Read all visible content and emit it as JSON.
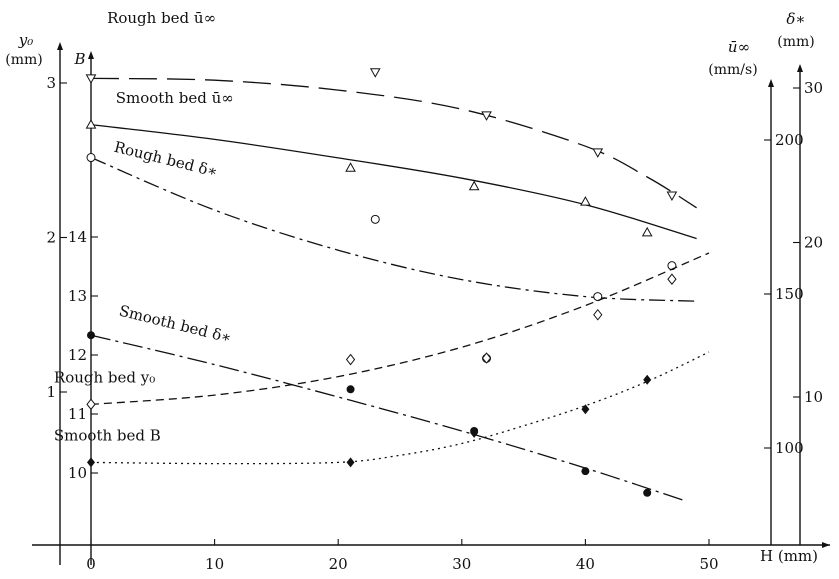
{
  "chart_data": {
    "type": "line",
    "x_axis": {
      "label": "H (mm)",
      "ticks": [
        0,
        10,
        20,
        30,
        40,
        50
      ],
      "range": [
        -5,
        60
      ]
    },
    "y_axes": [
      {
        "key": "y0",
        "label": "y₀",
        "unit": "(mm)",
        "ticks": [
          1,
          2,
          3
        ],
        "range": [
          0,
          3.2
        ],
        "position": "left-outer"
      },
      {
        "key": "B",
        "label": "B",
        "ticks": [
          10,
          11,
          12,
          13,
          14
        ],
        "range": [
          9.2,
          15.5
        ],
        "position": "left-inner"
      },
      {
        "key": "u",
        "label": "ū∞",
        "unit": "(mm/s)",
        "ticks": [
          100,
          150,
          200
        ],
        "range": [
          58,
          250
        ],
        "position": "right-inner"
      },
      {
        "key": "delta",
        "label": "δ∗",
        "unit": "(mm)",
        "ticks": [
          10,
          20,
          30
        ],
        "range": [
          0,
          32
        ],
        "position": "right-outer"
      }
    ],
    "series": [
      {
        "name": "Rough bed ū∞",
        "axis": "u",
        "marker": "triangle-down",
        "line": "long-dash",
        "x": [
          0,
          23,
          32,
          41,
          47
        ],
        "y": [
          220,
          222,
          208,
          196,
          182
        ],
        "curve_x": [
          0,
          10,
          20,
          30,
          40,
          45,
          49
        ],
        "curve_y": [
          220,
          219.4,
          216.2,
          210,
          198,
          188,
          178
        ]
      },
      {
        "name": "Smooth bed ū∞",
        "axis": "u",
        "marker": "triangle-up",
        "line": "solid",
        "x": [
          0,
          21,
          31,
          40,
          45
        ],
        "y": [
          205,
          191,
          185,
          180,
          170
        ],
        "curve_x": [
          0,
          10,
          20,
          30,
          40,
          49
        ],
        "curve_y": [
          205,
          200.2,
          194.2,
          187.6,
          179,
          168
        ]
      },
      {
        "name": "Rough bed δ∗",
        "axis": "delta",
        "marker": "circle-open",
        "line": "dash-dot",
        "x": [
          0,
          23,
          32,
          41,
          47
        ],
        "y": [
          25.5,
          21.5,
          12.5,
          16.5,
          18.5
        ],
        "curve_x": [
          0,
          10,
          20,
          30,
          40,
          49
        ],
        "curve_y": [
          25.5,
          22.1,
          19.5,
          17.6,
          16.5,
          16.2
        ]
      },
      {
        "name": "Smooth bed δ∗",
        "axis": "delta",
        "marker": "circle-filled",
        "line": "long-dash-dot",
        "x": [
          0,
          21,
          31,
          40,
          45
        ],
        "y": [
          14.0,
          10.5,
          7.8,
          5.2,
          3.8
        ],
        "curve_x": [
          0,
          10,
          20,
          30,
          40,
          48
        ],
        "curve_y": [
          14.0,
          12.1,
          10.0,
          7.8,
          5.4,
          3.3
        ]
      },
      {
        "name": "Rough bed y₀",
        "axis": "y0",
        "marker": "diamond-open",
        "line": "dashed",
        "x": [
          0,
          21,
          32,
          41,
          47
        ],
        "y": [
          0.92,
          1.21,
          1.22,
          1.5,
          1.73
        ],
        "curve_x": [
          0,
          10,
          20,
          30,
          40,
          50
        ],
        "curve_y": [
          0.92,
          0.98,
          1.1,
          1.29,
          1.56,
          1.9
        ]
      },
      {
        "name": "Smooth bed B",
        "axis": "B",
        "marker": "diamond-filled",
        "line": "dotted",
        "x": [
          0,
          21,
          31,
          40,
          45
        ],
        "y": [
          10.18,
          10.18,
          10.68,
          11.08,
          11.58
        ],
        "curve_x": [
          0,
          10,
          20,
          25,
          30,
          35,
          40,
          45,
          50
        ],
        "curve_y": [
          10.18,
          10.16,
          10.18,
          10.3,
          10.5,
          10.8,
          11.14,
          11.55,
          12.05
        ]
      }
    ],
    "annotations": [
      {
        "series": 0,
        "text": "Rough bed ū∞",
        "x": 1.3,
        "y": 238,
        "axis": "u"
      },
      {
        "series": 1,
        "text": "Smooth bed ū∞",
        "x": 2.0,
        "y": 212,
        "axis": "u"
      },
      {
        "series": 2,
        "text": "Rough bed δ∗",
        "x": 1.8,
        "y": 25.9,
        "axis": "delta",
        "rotate": 14
      },
      {
        "series": 3,
        "text": "Smooth bed δ∗",
        "x": 2.2,
        "y": 15.3,
        "axis": "delta",
        "rotate": 14
      },
      {
        "series": 4,
        "text": "Rough bed y₀",
        "x": -3.0,
        "y": 1.06,
        "axis": "y0"
      },
      {
        "series": 5,
        "text": "Smooth bed B",
        "x": -3.0,
        "y": 10.55,
        "axis": "B"
      }
    ],
    "grid": false,
    "legend": "none"
  }
}
